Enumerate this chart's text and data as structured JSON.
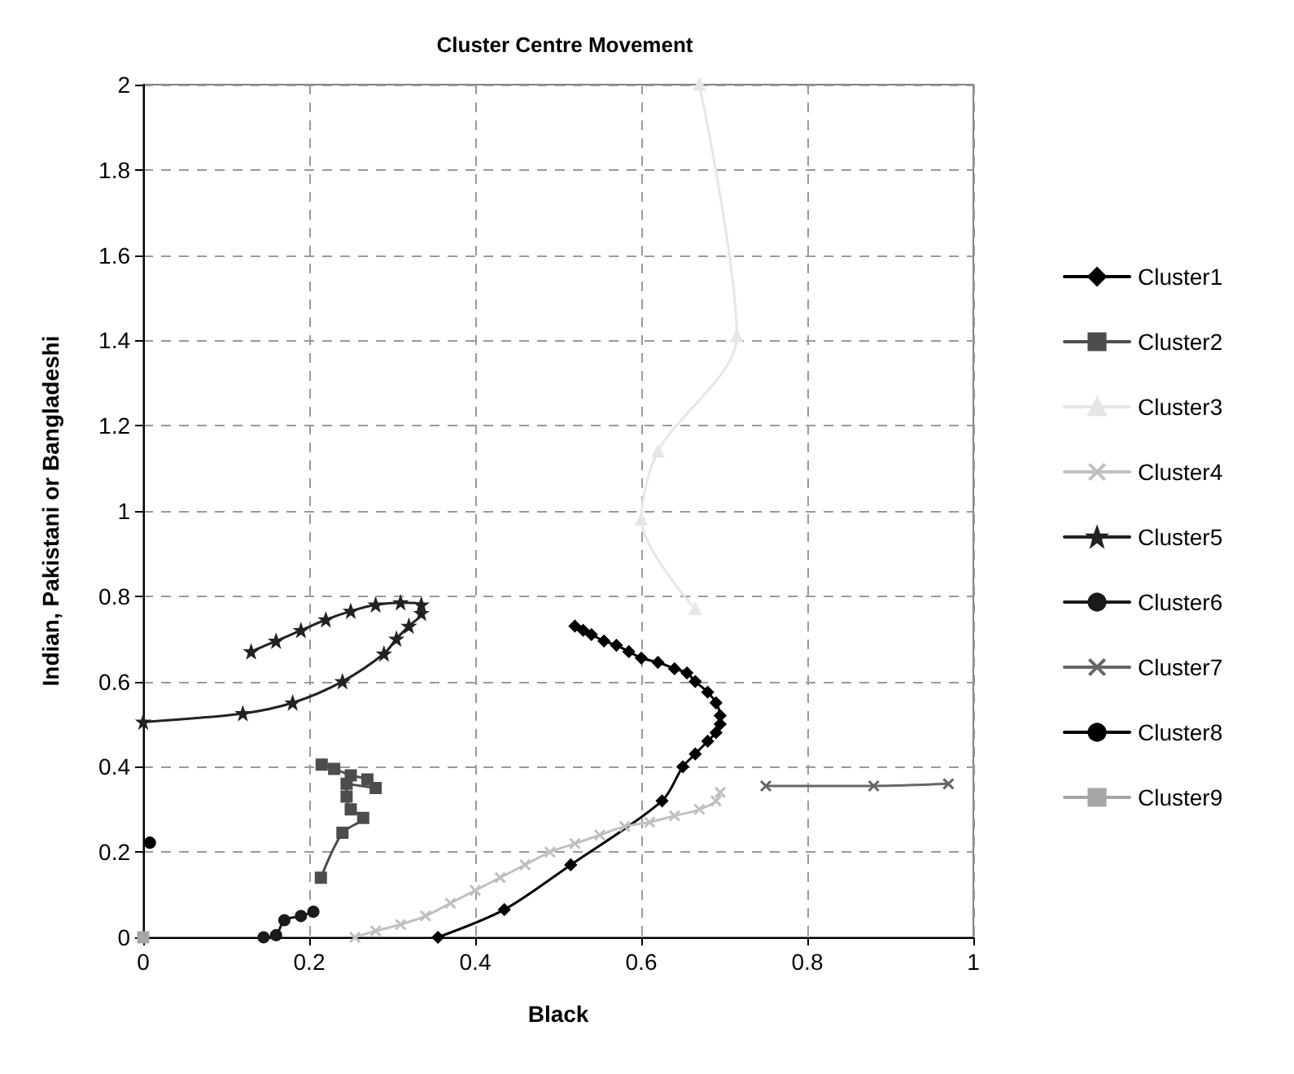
{
  "chart_data": {
    "type": "line",
    "title": "Cluster Centre Movement",
    "xlabel": "Black",
    "ylabel": "Indian, Pakistani or Bangladeshi",
    "xlim": [
      0,
      1
    ],
    "xticks": [
      0,
      0.2,
      0.4,
      0.6,
      0.8,
      1
    ],
    "ylim": [
      0,
      2
    ],
    "yticks": [
      0,
      0.2,
      0.4,
      0.6,
      0.8,
      1,
      1.2,
      1.4,
      1.6,
      1.8,
      2
    ],
    "grid": true,
    "legend": "right",
    "line_style": "solid",
    "series": [
      {
        "name": "Cluster1",
        "color": "#000000",
        "marker": "diamond",
        "x": [
          0.355,
          0.435,
          0.515,
          0.625,
          0.65,
          0.665,
          0.68,
          0.69,
          0.695,
          0.695,
          0.69,
          0.68,
          0.665,
          0.655,
          0.64,
          0.62,
          0.6,
          0.585,
          0.57,
          0.555,
          0.54,
          0.53,
          0.52
        ],
        "values": [
          0,
          0.065,
          0.17,
          0.32,
          0.4,
          0.43,
          0.46,
          0.48,
          0.5,
          0.52,
          0.55,
          0.575,
          0.6,
          0.62,
          0.63,
          0.645,
          0.655,
          0.67,
          0.685,
          0.695,
          0.71,
          0.72,
          0.73
        ]
      },
      {
        "name": "Cluster2",
        "color": "#4d4d4d",
        "marker": "square",
        "x": [
          0.214,
          0.24,
          0.265,
          0.25,
          0.245,
          0.245,
          0.28,
          0.27,
          0.25,
          0.23,
          0.215
        ],
        "values": [
          0.14,
          0.245,
          0.28,
          0.3,
          0.33,
          0.36,
          0.35,
          0.37,
          0.38,
          0.395,
          0.405
        ]
      },
      {
        "name": "Cluster3",
        "color": "#e6e6e6",
        "marker": "triangle",
        "x": [
          0.665,
          0.6,
          0.62,
          0.715,
          0.67
        ],
        "values": [
          0.77,
          0.98,
          1.14,
          1.41,
          2
        ]
      },
      {
        "name": "Cluster4",
        "color": "#c0c0c0",
        "marker": "cross",
        "x": [
          0.255,
          0.28,
          0.31,
          0.34,
          0.37,
          0.4,
          0.43,
          0.46,
          0.49,
          0.52,
          0.55,
          0.58,
          0.61,
          0.64,
          0.67,
          0.69,
          0.695
        ],
        "values": [
          0,
          0.015,
          0.03,
          0.05,
          0.08,
          0.11,
          0.14,
          0.17,
          0.2,
          0.22,
          0.24,
          0.26,
          0.27,
          0.285,
          0.3,
          0.32,
          0.34
        ]
      },
      {
        "name": "Cluster5",
        "color": "#222222",
        "marker": "star",
        "x": [
          0,
          0.12,
          0.18,
          0.24,
          0.29,
          0.305,
          0.32,
          0.335,
          0.335,
          0.31,
          0.28,
          0.25,
          0.22,
          0.19,
          0.16,
          0.13
        ],
        "values": [
          0.505,
          0.525,
          0.55,
          0.6,
          0.665,
          0.7,
          0.73,
          0.76,
          0.78,
          0.785,
          0.78,
          0.765,
          0.745,
          0.72,
          0.695,
          0.67
        ]
      },
      {
        "name": "Cluster6",
        "color": "#1a1a1a",
        "marker": "circle",
        "x": [
          0.145,
          0.16,
          0.17,
          0.19,
          0.205
        ],
        "values": [
          0,
          0.005,
          0.04,
          0.05,
          0.06
        ]
      },
      {
        "name": "Cluster7",
        "color": "#666666",
        "marker": "cross",
        "x": [
          0.75,
          0.88,
          0.97
        ],
        "values": [
          0.355,
          0.355,
          0.36
        ]
      },
      {
        "name": "Cluster8",
        "color": "#000000",
        "marker": "circle",
        "x": [
          0.008
        ],
        "values": [
          0.222
        ]
      },
      {
        "name": "Cluster9",
        "color": "#a6a6a6",
        "marker": "square",
        "x": [
          0
        ],
        "values": [
          0
        ]
      }
    ]
  }
}
